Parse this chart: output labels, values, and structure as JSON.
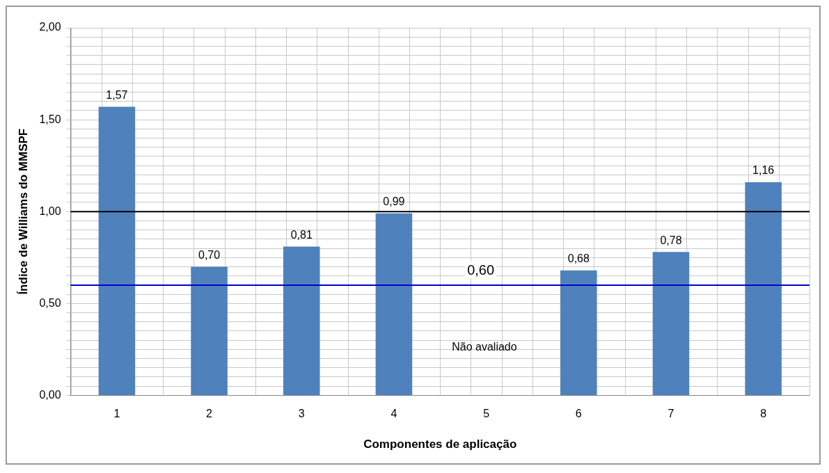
{
  "chart_data": {
    "type": "bar",
    "xlabel": "Componentes de aplicação",
    "ylabel": "Índice de Williams do MMSPF",
    "categories": [
      "1",
      "2",
      "3",
      "4",
      "5",
      "6",
      "7",
      "8"
    ],
    "values": [
      1.57,
      0.7,
      0.81,
      0.99,
      null,
      0.68,
      0.78,
      1.16
    ],
    "value_labels": [
      "1,57",
      "0,70",
      "0,81",
      "0,99",
      null,
      "0,68",
      "0,78",
      "1,16"
    ],
    "color": "#4f81bd",
    "ylim": [
      0,
      2
    ],
    "yticks": [
      {
        "value": 0,
        "label": "0,00"
      },
      {
        "value": 0.05,
        "label": null
      },
      {
        "value": 0.1,
        "label": null
      },
      {
        "value": 0.15,
        "label": null
      },
      {
        "value": 0.2,
        "label": null
      },
      {
        "value": 0.25,
        "label": null
      },
      {
        "value": 0.3,
        "label": null
      },
      {
        "value": 0.35,
        "label": null
      },
      {
        "value": 0.4,
        "label": null
      },
      {
        "value": 0.45,
        "label": null
      },
      {
        "value": 0.5,
        "label": "0,50"
      },
      {
        "value": 0.55,
        "label": null
      },
      {
        "value": 0.6,
        "label": null
      },
      {
        "value": 0.65,
        "label": null
      },
      {
        "value": 0.7,
        "label": null
      },
      {
        "value": 0.75,
        "label": null
      },
      {
        "value": 0.8,
        "label": null
      },
      {
        "value": 0.85,
        "label": null
      },
      {
        "value": 0.9,
        "label": null
      },
      {
        "value": 0.95,
        "label": null
      },
      {
        "value": 1,
        "label": "1,00"
      },
      {
        "value": 1.05,
        "label": null
      },
      {
        "value": 1.1,
        "label": null
      },
      {
        "value": 1.15,
        "label": null
      },
      {
        "value": 1.2,
        "label": null
      },
      {
        "value": 1.25,
        "label": null
      },
      {
        "value": 1.3,
        "label": null
      },
      {
        "value": 1.35,
        "label": null
      },
      {
        "value": 1.4,
        "label": null
      },
      {
        "value": 1.45,
        "label": null
      },
      {
        "value": 1.5,
        "label": "1,50"
      },
      {
        "value": 1.55,
        "label": null
      },
      {
        "value": 1.6,
        "label": null
      },
      {
        "value": 1.65,
        "label": null
      },
      {
        "value": 1.7,
        "label": null
      },
      {
        "value": 1.75,
        "label": null
      },
      {
        "value": 1.8,
        "label": null
      },
      {
        "value": 1.85,
        "label": null
      },
      {
        "value": 1.9,
        "label": null
      },
      {
        "value": 1.95,
        "label": null
      },
      {
        "value": 2,
        "label": "2,00"
      }
    ],
    "grid": true,
    "ref_lines": [
      {
        "axis": "y",
        "value": 1,
        "color": "#000000"
      },
      {
        "axis": "y",
        "value": 0.6,
        "label": "0,60",
        "color": "#0000cc"
      }
    ],
    "annotations": [
      "Não avaliado"
    ]
  }
}
